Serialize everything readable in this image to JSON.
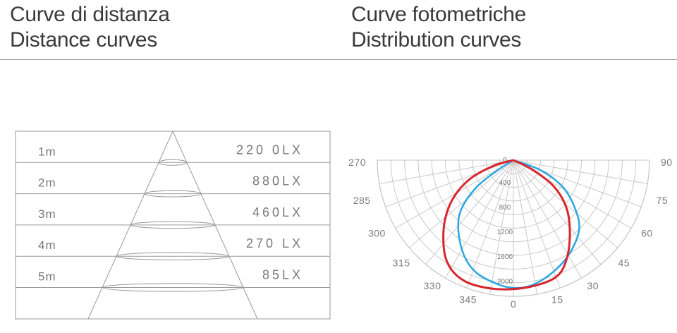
{
  "headings": {
    "left": {
      "it": "Curve di distanza",
      "en": "Distance curves"
    },
    "right": {
      "it": "Curve fotometriche",
      "en": "Distribution curves"
    }
  },
  "distance_rows": [
    {
      "distance": "1m",
      "lux": "220 0LX"
    },
    {
      "distance": "2m",
      "lux": "880LX"
    },
    {
      "distance": "3m",
      "lux": "460LX"
    },
    {
      "distance": "4m",
      "lux": "270 LX"
    },
    {
      "distance": "5m",
      "lux": "85LX"
    }
  ],
  "polar": {
    "angle_labels": [
      "270",
      "285",
      "300",
      "315",
      "330",
      "345",
      "0",
      "15",
      "30",
      "45",
      "60",
      "75",
      "90"
    ],
    "radial_labels": [
      "0",
      "400",
      "800",
      "1200",
      "1600",
      "2000"
    ],
    "colors": {
      "outer_curve": "#d9262e",
      "inner_curve": "#2aa7e0",
      "grid": "#c4c4c4"
    }
  }
}
